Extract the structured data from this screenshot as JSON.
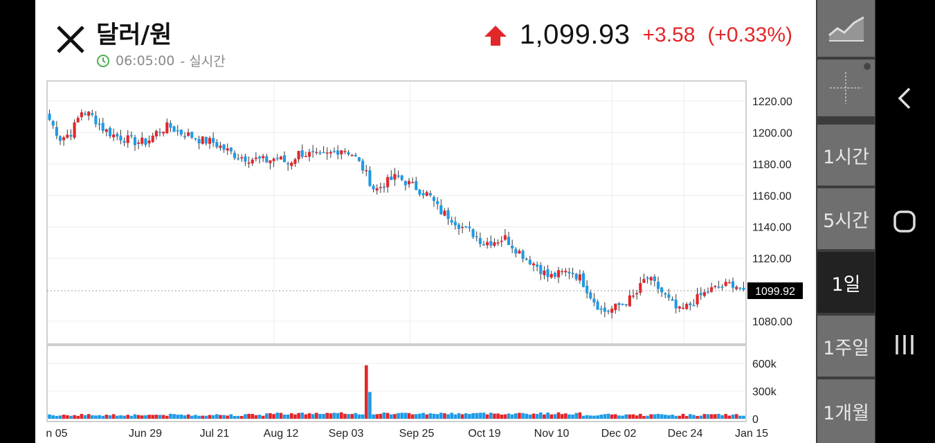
{
  "header": {
    "title": "달러/원",
    "time": "06:05:00",
    "mode": "- 실시간",
    "price": "1,099.93",
    "change": "+3.58",
    "change_pct": "(+0.33%)",
    "up_color": "#e3262a"
  },
  "chart_data": {
    "type": "candlestick",
    "price_labels": [
      "1220.00",
      "1200.00",
      "1180.00",
      "1160.00",
      "1140.00",
      "1120.00",
      "1080.00"
    ],
    "price_values": [
      1220,
      1200,
      1180,
      1160,
      1140,
      1120,
      1080
    ],
    "current_label": "1099.92",
    "current_value": 1099.92,
    "volume_labels": [
      "600k",
      "300k",
      "0"
    ],
    "volume_values": [
      600000,
      300000,
      0
    ],
    "x_labels": [
      "n 05",
      "Jun 29",
      "Jul 21",
      "Aug 12",
      "Sep 03",
      "Sep 25",
      "Oct 19",
      "Nov 10",
      "Dec 02",
      "Dec 24",
      "Jan 15"
    ],
    "close_path": [
      1208,
      1196,
      1200,
      1214,
      1210,
      1202,
      1198,
      1196,
      1194,
      1194,
      1201,
      1204,
      1200,
      1198,
      1195,
      1194,
      1190,
      1186,
      1184,
      1183,
      1182,
      1184,
      1180,
      1187,
      1186,
      1184,
      1187,
      1190,
      1186,
      1176,
      1163,
      1168,
      1172,
      1168,
      1164,
      1160,
      1150,
      1146,
      1140,
      1136,
      1130,
      1131,
      1133,
      1126,
      1120,
      1115,
      1108,
      1110,
      1112,
      1107,
      1095,
      1086,
      1088,
      1092,
      1096,
      1108,
      1102,
      1094,
      1086,
      1090,
      1096,
      1100,
      1102,
      1104,
      1100
    ],
    "up_color": "#e3262a",
    "down_color": "#1e9be6"
  },
  "rail": {
    "items": [
      "1시간",
      "5시간",
      "1일",
      "1주일",
      "1개월"
    ],
    "active": "1일"
  },
  "icons": {
    "close": "close-icon",
    "clock": "clock-icon",
    "up": "up-arrow-icon",
    "chart_type": "line-chart-icon",
    "crosshair": "crosshair-icon",
    "back": "back-icon",
    "home": "home-icon",
    "recents": "recents-icon"
  }
}
